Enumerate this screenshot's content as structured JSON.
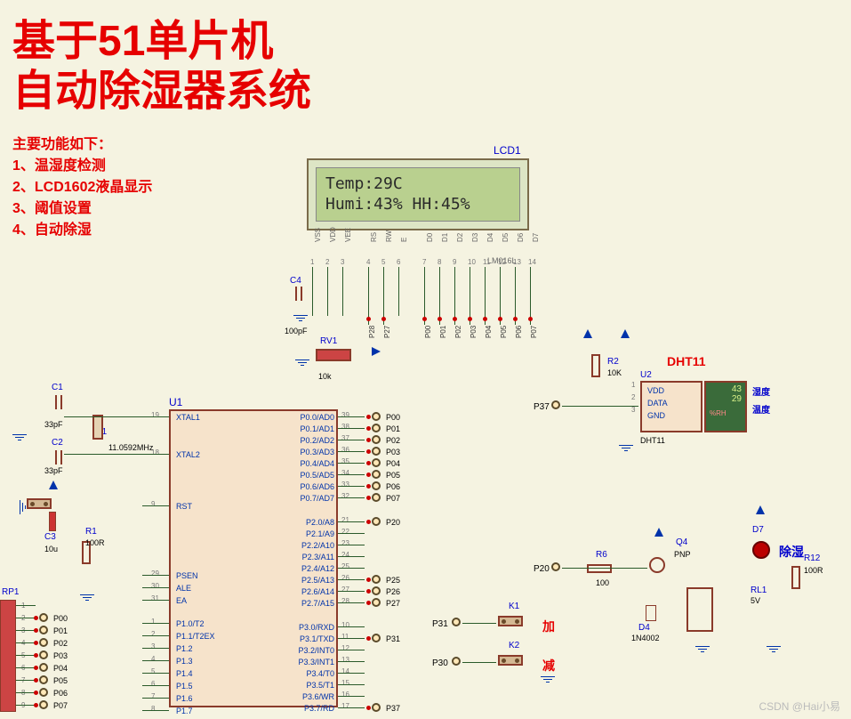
{
  "title": {
    "line1": "基于51单片机",
    "line2": "自动除湿器系统"
  },
  "features": {
    "header": "主要功能如下：",
    "f1": "1、温湿度检测",
    "f2": "2、LCD1602液晶显示",
    "f3": "3、阈值设置",
    "f4": "4、自动除湿"
  },
  "lcd": {
    "ref": "LCD1",
    "part": "LM016L",
    "line1": "Temp:29C",
    "line2": "Humi:43%  HH:45%",
    "pins_top": [
      "VSS",
      "VDD",
      "VEE",
      "RS",
      "RW",
      "E",
      "D0",
      "D1",
      "D2",
      "D3",
      "D4",
      "D5",
      "D6",
      "D7"
    ],
    "pins_num": [
      "1",
      "2",
      "3",
      "4",
      "5",
      "6",
      "7",
      "8",
      "9",
      "10",
      "11",
      "12",
      "13",
      "14"
    ],
    "bus_labels": [
      "P28",
      "P27",
      "",
      "P00",
      "P01",
      "P02",
      "P03",
      "P04",
      "P05",
      "P06",
      "P07"
    ]
  },
  "mcu": {
    "ref": "U1",
    "left_pins": [
      {
        "num": "19",
        "name": "XTAL1"
      },
      {
        "num": "18",
        "name": "XTAL2"
      },
      {
        "num": "9",
        "name": "RST"
      },
      {
        "num": "29",
        "name": "PSEN"
      },
      {
        "num": "30",
        "name": "ALE"
      },
      {
        "num": "31",
        "name": "EA"
      },
      {
        "num": "1",
        "name": "P1.0/T2"
      },
      {
        "num": "2",
        "name": "P1.1/T2EX"
      },
      {
        "num": "3",
        "name": "P1.2"
      },
      {
        "num": "4",
        "name": "P1.3"
      },
      {
        "num": "5",
        "name": "P1.4"
      },
      {
        "num": "6",
        "name": "P1.5"
      },
      {
        "num": "7",
        "name": "P1.6"
      },
      {
        "num": "8",
        "name": "P1.7"
      }
    ],
    "right_pins": [
      {
        "num": "39",
        "name": "P0.0/AD0",
        "net": "P00"
      },
      {
        "num": "38",
        "name": "P0.1/AD1",
        "net": "P01"
      },
      {
        "num": "37",
        "name": "P0.2/AD2",
        "net": "P02"
      },
      {
        "num": "36",
        "name": "P0.3/AD3",
        "net": "P03"
      },
      {
        "num": "35",
        "name": "P0.4/AD4",
        "net": "P04"
      },
      {
        "num": "34",
        "name": "P0.5/AD5",
        "net": "P05"
      },
      {
        "num": "33",
        "name": "P0.6/AD6",
        "net": "P06"
      },
      {
        "num": "32",
        "name": "P0.7/AD7",
        "net": "P07"
      },
      {
        "num": "21",
        "name": "P2.0/A8",
        "net": "P20"
      },
      {
        "num": "22",
        "name": "P2.1/A9",
        "net": ""
      },
      {
        "num": "23",
        "name": "P2.2/A10",
        "net": ""
      },
      {
        "num": "24",
        "name": "P2.3/A11",
        "net": ""
      },
      {
        "num": "25",
        "name": "P2.4/A12",
        "net": ""
      },
      {
        "num": "26",
        "name": "P2.5/A13",
        "net": "P25"
      },
      {
        "num": "27",
        "name": "P2.6/A14",
        "net": "P26"
      },
      {
        "num": "28",
        "name": "P2.7/A15",
        "net": "P27"
      },
      {
        "num": "10",
        "name": "P3.0/RXD",
        "net": ""
      },
      {
        "num": "11",
        "name": "P3.1/TXD",
        "net": "P31"
      },
      {
        "num": "12",
        "name": "P3.2/INT0",
        "net": ""
      },
      {
        "num": "13",
        "name": "P3.3/INT1",
        "net": ""
      },
      {
        "num": "14",
        "name": "P3.4/T0",
        "net": ""
      },
      {
        "num": "15",
        "name": "P3.5/T1",
        "net": ""
      },
      {
        "num": "16",
        "name": "P3.6/WR",
        "net": ""
      },
      {
        "num": "17",
        "name": "P3.7/RD",
        "net": "P37"
      }
    ]
  },
  "components": {
    "c1": {
      "ref": "C1",
      "val": "33pF"
    },
    "c2": {
      "ref": "C2",
      "val": "33pF"
    },
    "x1": {
      "ref": "X1",
      "val": "11.0592MHz"
    },
    "c3": {
      "ref": "C3",
      "val": "10u"
    },
    "r1": {
      "ref": "R1",
      "val": "100R"
    },
    "rp1": {
      "ref": "RP1"
    },
    "rp1_nets": [
      "P00",
      "P01",
      "P02",
      "P03",
      "P04",
      "P05",
      "P06",
      "P07"
    ],
    "c4": {
      "ref": "C4",
      "val": "100pF"
    },
    "rv1": {
      "ref": "RV1",
      "val": "10k"
    },
    "r2": {
      "ref": "R2",
      "val": "10K"
    },
    "u2": {
      "ref": "U2",
      "part": "DHT11",
      "title": "DHT11",
      "pins": [
        "VDD",
        "DATA",
        "GND"
      ],
      "humi": "43",
      "temp": "29",
      "rh": "%RH",
      "humi_label": "湿度",
      "temp_label": "温度"
    },
    "k1": {
      "ref": "K1",
      "label": "加",
      "net": "P31"
    },
    "k2": {
      "ref": "K2",
      "label": "减",
      "net": "P30"
    },
    "r6": {
      "ref": "R6",
      "val": "100",
      "net": "P20"
    },
    "q4": {
      "ref": "Q4",
      "val": "PNP"
    },
    "d4": {
      "ref": "D4",
      "val": "1N4002"
    },
    "rl1": {
      "ref": "RL1",
      "val": "5V"
    },
    "d7": {
      "ref": "D7",
      "label": "除湿"
    },
    "r12": {
      "ref": "R12",
      "val": "100R"
    },
    "p37": "P37"
  },
  "watermark": "CSDN @Hai小易"
}
